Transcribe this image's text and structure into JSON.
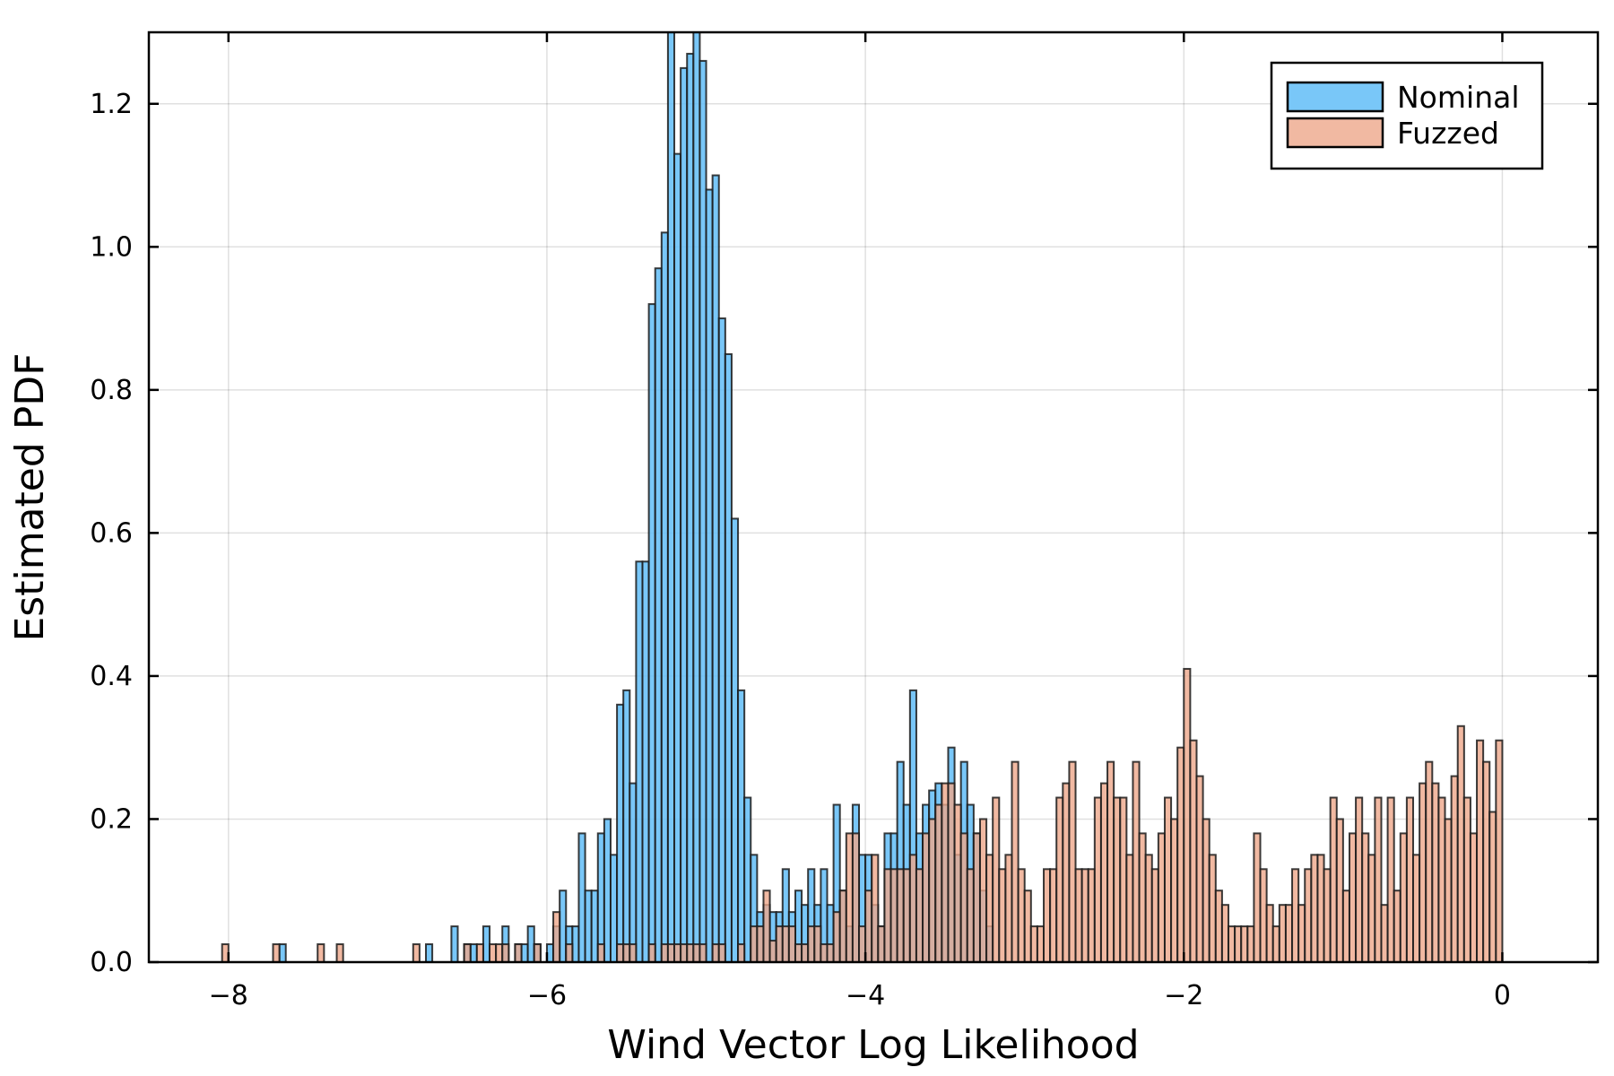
{
  "chart_data": {
    "type": "bar",
    "subtype": "overlaid-histogram",
    "title": "",
    "xlabel": "Wind Vector Log Likelihood",
    "ylabel": "Estimated PDF",
    "xlim": [
      -8.5,
      0.6
    ],
    "ylim": [
      0,
      1.3
    ],
    "x_ticks": [
      -8,
      -6,
      -4,
      -2,
      0
    ],
    "x_tick_labels": [
      "−8",
      "−6",
      "−4",
      "−2",
      "0"
    ],
    "y_ticks": [
      0.0,
      0.2,
      0.4,
      0.6,
      0.8,
      1.0,
      1.2
    ],
    "y_tick_labels": [
      "0.0",
      "0.2",
      "0.4",
      "0.6",
      "0.8",
      "1.0",
      "1.2"
    ],
    "grid": true,
    "legend_position": "top-right",
    "bin_width": 0.04,
    "series": [
      {
        "name": "Nominal",
        "color": "#62bdf7",
        "bins": [
          [
            -7.68,
            0.025
          ],
          [
            -6.76,
            0.025
          ],
          [
            -6.6,
            0.05
          ],
          [
            -6.52,
            0.025
          ],
          [
            -6.48,
            0.025
          ],
          [
            -6.4,
            0.05
          ],
          [
            -6.28,
            0.05
          ],
          [
            -6.2,
            0.025
          ],
          [
            -6.16,
            0.025
          ],
          [
            -6.12,
            0.05
          ],
          [
            -6.08,
            0.025
          ],
          [
            -6.0,
            0.025
          ],
          [
            -5.96,
            0.05
          ],
          [
            -5.92,
            0.1
          ],
          [
            -5.88,
            0.05
          ],
          [
            -5.84,
            0.05
          ],
          [
            -5.8,
            0.18
          ],
          [
            -5.76,
            0.1
          ],
          [
            -5.72,
            0.1
          ],
          [
            -5.68,
            0.18
          ],
          [
            -5.64,
            0.2
          ],
          [
            -5.6,
            0.15
          ],
          [
            -5.56,
            0.36
          ],
          [
            -5.52,
            0.38
          ],
          [
            -5.48,
            0.25
          ],
          [
            -5.44,
            0.56
          ],
          [
            -5.4,
            0.56
          ],
          [
            -5.36,
            0.92
          ],
          [
            -5.32,
            0.97
          ],
          [
            -5.28,
            1.02
          ],
          [
            -5.24,
            1.3
          ],
          [
            -5.2,
            1.13
          ],
          [
            -5.16,
            1.25
          ],
          [
            -5.12,
            1.27
          ],
          [
            -5.08,
            1.3
          ],
          [
            -5.04,
            1.26
          ],
          [
            -5.0,
            1.08
          ],
          [
            -4.96,
            1.1
          ],
          [
            -4.92,
            0.9
          ],
          [
            -4.88,
            0.85
          ],
          [
            -4.84,
            0.62
          ],
          [
            -4.8,
            0.38
          ],
          [
            -4.76,
            0.23
          ],
          [
            -4.72,
            0.15
          ],
          [
            -4.68,
            0.07
          ],
          [
            -4.64,
            0.08
          ],
          [
            -4.6,
            0.07
          ],
          [
            -4.56,
            0.07
          ],
          [
            -4.52,
            0.13
          ],
          [
            -4.48,
            0.07
          ],
          [
            -4.44,
            0.1
          ],
          [
            -4.4,
            0.08
          ],
          [
            -4.36,
            0.13
          ],
          [
            -4.32,
            0.08
          ],
          [
            -4.28,
            0.13
          ],
          [
            -4.24,
            0.08
          ],
          [
            -4.2,
            0.22
          ],
          [
            -4.16,
            0.1
          ],
          [
            -4.12,
            0.05
          ],
          [
            -4.08,
            0.22
          ],
          [
            -4.04,
            0.15
          ],
          [
            -4.0,
            0.15
          ],
          [
            -3.96,
            0.08
          ],
          [
            -3.92,
            0.05
          ],
          [
            -3.88,
            0.18
          ],
          [
            -3.84,
            0.18
          ],
          [
            -3.8,
            0.28
          ],
          [
            -3.76,
            0.22
          ],
          [
            -3.72,
            0.38
          ],
          [
            -3.68,
            0.18
          ],
          [
            -3.64,
            0.22
          ],
          [
            -3.6,
            0.24
          ],
          [
            -3.56,
            0.25
          ],
          [
            -3.52,
            0.22
          ],
          [
            -3.48,
            0.3
          ],
          [
            -3.44,
            0.15
          ],
          [
            -3.4,
            0.28
          ],
          [
            -3.36,
            0.22
          ],
          [
            -3.32,
            0.18
          ],
          [
            -3.28,
            0.1
          ],
          [
            -3.24,
            0.05
          ]
        ]
      },
      {
        "name": "Fuzzed",
        "color": "#eda88b",
        "bins": [
          [
            -8.04,
            0.025
          ],
          [
            -7.72,
            0.025
          ],
          [
            -7.44,
            0.025
          ],
          [
            -7.32,
            0.025
          ],
          [
            -6.84,
            0.025
          ],
          [
            -6.52,
            0.025
          ],
          [
            -6.44,
            0.025
          ],
          [
            -6.36,
            0.025
          ],
          [
            -6.32,
            0.025
          ],
          [
            -6.28,
            0.025
          ],
          [
            -6.2,
            0.025
          ],
          [
            -6.08,
            0.025
          ],
          [
            -5.96,
            0.07
          ],
          [
            -5.88,
            0.025
          ],
          [
            -5.68,
            0.025
          ],
          [
            -5.56,
            0.025
          ],
          [
            -5.52,
            0.025
          ],
          [
            -5.48,
            0.025
          ],
          [
            -5.36,
            0.025
          ],
          [
            -5.28,
            0.025
          ],
          [
            -5.24,
            0.025
          ],
          [
            -5.2,
            0.025
          ],
          [
            -5.16,
            0.025
          ],
          [
            -5.12,
            0.025
          ],
          [
            -5.08,
            0.025
          ],
          [
            -5.04,
            0.025
          ],
          [
            -4.96,
            0.025
          ],
          [
            -4.92,
            0.025
          ],
          [
            -4.8,
            0.025
          ],
          [
            -4.72,
            0.05
          ],
          [
            -4.68,
            0.05
          ],
          [
            -4.64,
            0.1
          ],
          [
            -4.6,
            0.03
          ],
          [
            -4.56,
            0.05
          ],
          [
            -4.52,
            0.05
          ],
          [
            -4.48,
            0.05
          ],
          [
            -4.44,
            0.025
          ],
          [
            -4.4,
            0.025
          ],
          [
            -4.36,
            0.05
          ],
          [
            -4.32,
            0.05
          ],
          [
            -4.28,
            0.025
          ],
          [
            -4.24,
            0.025
          ],
          [
            -4.2,
            0.07
          ],
          [
            -4.16,
            0.1
          ],
          [
            -4.12,
            0.18
          ],
          [
            -4.08,
            0.18
          ],
          [
            -4.04,
            0.05
          ],
          [
            -4.0,
            0.1
          ],
          [
            -3.96,
            0.15
          ],
          [
            -3.92,
            0.05
          ],
          [
            -3.88,
            0.13
          ],
          [
            -3.84,
            0.13
          ],
          [
            -3.8,
            0.13
          ],
          [
            -3.76,
            0.13
          ],
          [
            -3.72,
            0.15
          ],
          [
            -3.68,
            0.13
          ],
          [
            -3.64,
            0.18
          ],
          [
            -3.6,
            0.2
          ],
          [
            -3.56,
            0.22
          ],
          [
            -3.52,
            0.25
          ],
          [
            -3.48,
            0.25
          ],
          [
            -3.44,
            0.22
          ],
          [
            -3.4,
            0.18
          ],
          [
            -3.36,
            0.13
          ],
          [
            -3.32,
            0.18
          ],
          [
            -3.28,
            0.2
          ],
          [
            -3.24,
            0.15
          ],
          [
            -3.2,
            0.23
          ],
          [
            -3.16,
            0.13
          ],
          [
            -3.12,
            0.15
          ],
          [
            -3.08,
            0.28
          ],
          [
            -3.04,
            0.13
          ],
          [
            -3.0,
            0.1
          ],
          [
            -2.96,
            0.05
          ],
          [
            -2.92,
            0.05
          ],
          [
            -2.88,
            0.13
          ],
          [
            -2.84,
            0.13
          ],
          [
            -2.8,
            0.23
          ],
          [
            -2.76,
            0.25
          ],
          [
            -2.72,
            0.28
          ],
          [
            -2.68,
            0.13
          ],
          [
            -2.64,
            0.13
          ],
          [
            -2.6,
            0.13
          ],
          [
            -2.56,
            0.23
          ],
          [
            -2.52,
            0.25
          ],
          [
            -2.48,
            0.28
          ],
          [
            -2.44,
            0.23
          ],
          [
            -2.4,
            0.23
          ],
          [
            -2.36,
            0.15
          ],
          [
            -2.32,
            0.28
          ],
          [
            -2.28,
            0.18
          ],
          [
            -2.24,
            0.15
          ],
          [
            -2.2,
            0.13
          ],
          [
            -2.16,
            0.18
          ],
          [
            -2.12,
            0.23
          ],
          [
            -2.08,
            0.2
          ],
          [
            -2.04,
            0.3
          ],
          [
            -2.0,
            0.41
          ],
          [
            -1.96,
            0.31
          ],
          [
            -1.92,
            0.26
          ],
          [
            -1.88,
            0.2
          ],
          [
            -1.84,
            0.15
          ],
          [
            -1.8,
            0.1
          ],
          [
            -1.76,
            0.08
          ],
          [
            -1.72,
            0.05
          ],
          [
            -1.68,
            0.05
          ],
          [
            -1.64,
            0.05
          ],
          [
            -1.6,
            0.05
          ],
          [
            -1.56,
            0.18
          ],
          [
            -1.52,
            0.13
          ],
          [
            -1.48,
            0.08
          ],
          [
            -1.44,
            0.05
          ],
          [
            -1.4,
            0.08
          ],
          [
            -1.36,
            0.08
          ],
          [
            -1.32,
            0.13
          ],
          [
            -1.28,
            0.08
          ],
          [
            -1.24,
            0.13
          ],
          [
            -1.2,
            0.15
          ],
          [
            -1.16,
            0.15
          ],
          [
            -1.12,
            0.13
          ],
          [
            -1.08,
            0.23
          ],
          [
            -1.04,
            0.2
          ],
          [
            -1.0,
            0.1
          ],
          [
            -0.96,
            0.18
          ],
          [
            -0.92,
            0.23
          ],
          [
            -0.88,
            0.18
          ],
          [
            -0.84,
            0.15
          ],
          [
            -0.8,
            0.23
          ],
          [
            -0.76,
            0.08
          ],
          [
            -0.72,
            0.23
          ],
          [
            -0.68,
            0.1
          ],
          [
            -0.64,
            0.18
          ],
          [
            -0.6,
            0.23
          ],
          [
            -0.56,
            0.15
          ],
          [
            -0.52,
            0.25
          ],
          [
            -0.48,
            0.28
          ],
          [
            -0.44,
            0.25
          ],
          [
            -0.4,
            0.23
          ],
          [
            -0.36,
            0.2
          ],
          [
            -0.32,
            0.26
          ],
          [
            -0.28,
            0.33
          ],
          [
            -0.24,
            0.23
          ],
          [
            -0.2,
            0.18
          ],
          [
            -0.16,
            0.31
          ],
          [
            -0.12,
            0.28
          ],
          [
            -0.08,
            0.21
          ],
          [
            -0.04,
            0.31
          ]
        ]
      }
    ]
  }
}
